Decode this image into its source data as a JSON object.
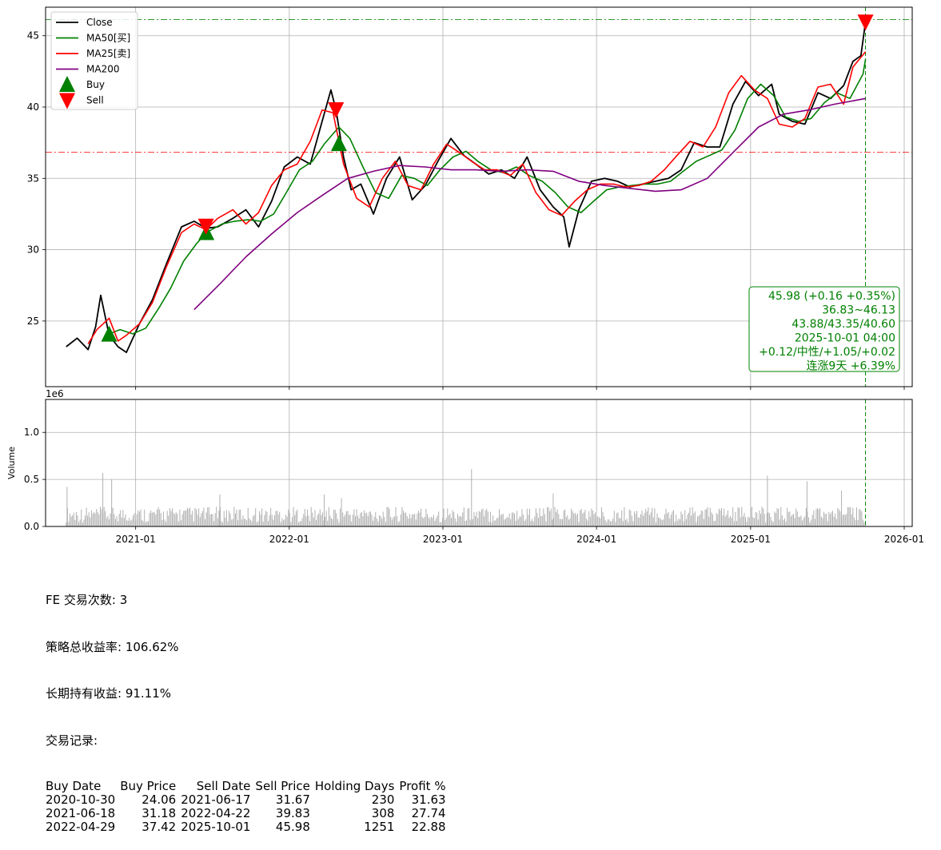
{
  "chart_data": [
    {
      "type": "line",
      "title": "",
      "xlabel": "",
      "ylabel": "",
      "ylim": [
        20.4,
        47.0
      ],
      "x_range": [
        "2020-06-01",
        "2026-01-20"
      ],
      "grid": true,
      "legend_placement": "top-left",
      "x_ticks": [
        "2021-01",
        "2022-01",
        "2023-01",
        "2024-01",
        "2025-01",
        "2026-01"
      ],
      "y_ticks": [
        25,
        30,
        35,
        40,
        45
      ],
      "series": [
        {
          "name": "Close",
          "color": "#000000",
          "x": [
            "2020-07-20",
            "2020-08-15",
            "2020-09-10",
            "2020-09-28",
            "2020-10-10",
            "2020-10-30",
            "2020-11-20",
            "2020-12-10",
            "2021-01-10",
            "2021-02-10",
            "2021-03-15",
            "2021-04-20",
            "2021-05-20",
            "2021-06-17",
            "2021-07-15",
            "2021-08-20",
            "2021-09-20",
            "2021-10-20",
            "2021-11-20",
            "2021-12-20",
            "2022-01-20",
            "2022-02-20",
            "2022-03-20",
            "2022-04-10",
            "2022-04-22",
            "2022-05-10",
            "2022-05-28",
            "2022-06-20",
            "2022-07-20",
            "2022-08-20",
            "2022-09-20",
            "2022-10-20",
            "2022-11-20",
            "2022-12-20",
            "2023-01-20",
            "2023-02-20",
            "2023-03-20",
            "2023-04-20",
            "2023-05-20",
            "2023-06-20",
            "2023-07-20",
            "2023-08-20",
            "2023-09-20",
            "2023-10-15",
            "2023-10-28",
            "2023-11-20",
            "2023-12-20",
            "2024-01-20",
            "2024-02-20",
            "2024-03-20",
            "2024-04-20",
            "2024-05-20",
            "2024-06-20",
            "2024-07-20",
            "2024-08-20",
            "2024-09-20",
            "2024-10-20",
            "2024-11-20",
            "2024-12-20",
            "2025-01-20",
            "2025-02-20",
            "2025-03-10",
            "2025-04-10",
            "2025-05-10",
            "2025-06-10",
            "2025-07-10",
            "2025-08-10",
            "2025-09-01",
            "2025-09-20",
            "2025-10-01"
          ],
          "values": [
            23.2,
            23.8,
            23.0,
            24.6,
            26.8,
            24.0,
            23.2,
            22.8,
            24.8,
            26.5,
            29.0,
            31.6,
            32.0,
            31.5,
            31.6,
            32.2,
            32.8,
            31.6,
            33.4,
            35.8,
            36.5,
            36.0,
            39.0,
            41.2,
            39.8,
            36.5,
            34.2,
            34.6,
            32.5,
            35.0,
            36.5,
            33.5,
            34.5,
            36.2,
            37.8,
            36.6,
            36.0,
            35.3,
            35.6,
            35.0,
            36.5,
            34.2,
            33.0,
            32.3,
            30.2,
            32.8,
            34.8,
            35.0,
            34.8,
            34.4,
            34.6,
            34.8,
            35.0,
            35.6,
            37.5,
            37.2,
            37.2,
            40.2,
            41.8,
            40.8,
            41.6,
            39.5,
            39.0,
            38.8,
            41.0,
            40.6,
            41.5,
            43.2,
            43.6,
            45.98
          ]
        },
        {
          "name": "MA50[买]",
          "color": "#008000",
          "x": [
            "2020-10-30",
            "2020-11-25",
            "2020-12-25",
            "2021-01-25",
            "2021-02-25",
            "2021-03-25",
            "2021-04-25",
            "2021-05-25",
            "2021-06-18",
            "2021-07-25",
            "2021-08-25",
            "2021-09-25",
            "2021-10-25",
            "2021-11-25",
            "2021-12-25",
            "2022-01-25",
            "2022-02-25",
            "2022-03-25",
            "2022-04-29",
            "2022-05-25",
            "2022-06-25",
            "2022-07-25",
            "2022-08-25",
            "2022-09-25",
            "2022-10-25",
            "2022-11-25",
            "2022-12-25",
            "2023-01-25",
            "2023-02-25",
            "2023-03-25",
            "2023-04-25",
            "2023-05-25",
            "2023-06-25",
            "2023-07-25",
            "2023-08-25",
            "2023-09-25",
            "2023-10-25",
            "2023-11-25",
            "2023-12-25",
            "2024-01-25",
            "2024-02-25",
            "2024-03-25",
            "2024-04-25",
            "2024-05-25",
            "2024-06-25",
            "2024-07-25",
            "2024-08-25",
            "2024-09-25",
            "2024-10-25",
            "2024-11-25",
            "2024-12-25",
            "2025-01-25",
            "2025-02-25",
            "2025-03-25",
            "2025-04-25",
            "2025-05-25",
            "2025-06-25",
            "2025-07-25",
            "2025-08-25",
            "2025-09-25",
            "2025-10-01"
          ],
          "values": [
            24.1,
            24.4,
            24.1,
            24.5,
            25.9,
            27.3,
            29.2,
            30.4,
            31.2,
            31.8,
            32.0,
            32.1,
            32.0,
            32.5,
            34.0,
            35.6,
            36.2,
            37.4,
            38.6,
            37.8,
            35.8,
            34.0,
            33.6,
            35.2,
            35.0,
            34.5,
            35.6,
            36.5,
            36.9,
            36.2,
            35.6,
            35.4,
            35.8,
            35.2,
            34.8,
            34.0,
            33.0,
            32.6,
            33.4,
            34.2,
            34.4,
            34.5,
            34.6,
            34.6,
            34.8,
            35.5,
            36.2,
            36.6,
            37.0,
            38.4,
            40.6,
            41.6,
            40.8,
            39.3,
            39.0,
            39.2,
            40.3,
            41.0,
            40.6,
            42.3,
            43.35
          ]
        },
        {
          "name": "MA25[卖]",
          "color": "#ff0000",
          "x": [
            "2020-09-10",
            "2020-10-01",
            "2020-10-30",
            "2020-11-20",
            "2020-12-10",
            "2021-01-10",
            "2021-02-10",
            "2021-03-15",
            "2021-04-20",
            "2021-05-20",
            "2021-06-17",
            "2021-07-15",
            "2021-08-20",
            "2021-09-20",
            "2021-10-20",
            "2021-11-20",
            "2021-12-20",
            "2022-01-20",
            "2022-02-20",
            "2022-03-20",
            "2022-04-15",
            "2022-05-10",
            "2022-06-10",
            "2022-07-10",
            "2022-08-10",
            "2022-09-10",
            "2022-10-10",
            "2022-11-10",
            "2022-12-10",
            "2023-01-10",
            "2023-02-10",
            "2023-03-10",
            "2023-04-10",
            "2023-05-10",
            "2023-06-10",
            "2023-07-10",
            "2023-08-10",
            "2023-09-10",
            "2023-10-10",
            "2023-11-10",
            "2023-12-10",
            "2024-01-10",
            "2024-02-10",
            "2024-03-10",
            "2024-04-10",
            "2024-05-10",
            "2024-06-10",
            "2024-07-10",
            "2024-08-10",
            "2024-09-10",
            "2024-10-10",
            "2024-11-10",
            "2024-12-10",
            "2025-01-10",
            "2025-02-10",
            "2025-03-10",
            "2025-04-10",
            "2025-05-10",
            "2025-06-10",
            "2025-07-10",
            "2025-08-10",
            "2025-09-01",
            "2025-10-01"
          ],
          "values": [
            23.4,
            24.4,
            25.2,
            23.6,
            24.0,
            24.8,
            26.3,
            28.8,
            31.2,
            31.8,
            31.4,
            32.2,
            32.8,
            31.8,
            32.6,
            34.5,
            35.6,
            36.0,
            37.6,
            39.8,
            39.6,
            36.0,
            33.6,
            33.0,
            35.0,
            36.2,
            34.5,
            34.2,
            36.0,
            37.4,
            36.8,
            36.2,
            35.6,
            35.6,
            35.2,
            36.0,
            34.0,
            32.8,
            32.4,
            33.4,
            34.2,
            34.6,
            34.6,
            34.4,
            34.5,
            34.8,
            35.6,
            36.6,
            37.6,
            37.2,
            38.6,
            41.0,
            42.2,
            41.2,
            40.6,
            38.8,
            38.6,
            39.2,
            41.4,
            41.6,
            40.2,
            42.8,
            43.88
          ]
        },
        {
          "name": "MA200",
          "color": "#800080",
          "x": [
            "2021-05-20",
            "2021-07-20",
            "2021-09-20",
            "2021-11-20",
            "2022-01-20",
            "2022-03-20",
            "2022-05-20",
            "2022-07-20",
            "2022-09-20",
            "2022-11-20",
            "2023-01-20",
            "2023-03-20",
            "2023-05-20",
            "2023-07-20",
            "2023-09-20",
            "2023-11-20",
            "2024-01-20",
            "2024-03-20",
            "2024-05-20",
            "2024-07-20",
            "2024-09-20",
            "2024-11-20",
            "2025-01-20",
            "2025-03-20",
            "2025-05-20",
            "2025-07-20",
            "2025-10-01"
          ],
          "values": [
            25.8,
            27.6,
            29.5,
            31.1,
            32.6,
            33.8,
            35.0,
            35.5,
            35.9,
            35.8,
            35.6,
            35.6,
            35.5,
            35.6,
            35.5,
            34.8,
            34.5,
            34.3,
            34.1,
            34.2,
            35.0,
            36.8,
            38.6,
            39.5,
            39.8,
            40.2,
            40.6
          ]
        }
      ],
      "hlines": [
        46.13,
        36.83
      ],
      "vline_date": "2025-10-01",
      "buy_markers": [
        {
          "date": "2020-10-30",
          "price": 24.06
        },
        {
          "date": "2021-06-18",
          "price": 31.18
        },
        {
          "date": "2022-04-29",
          "price": 37.42
        }
      ],
      "sell_markers": [
        {
          "date": "2021-06-17",
          "price": 31.67
        },
        {
          "date": "2022-04-22",
          "price": 39.83
        },
        {
          "date": "2025-10-01",
          "price": 45.98
        }
      ],
      "legend": [
        "Close",
        "MA50[买]",
        "MA25[卖]",
        "MA200",
        "Buy",
        "Sell"
      ],
      "annotation_lines": [
        "45.98 (+0.16 +0.35%)",
        "36.83~46.13",
        "43.88/43.35/40.60",
        "2025-10-01 04:00",
        "+0.12/中性/+1.05/+0.02",
        "连涨9天 +6.39%"
      ]
    },
    {
      "type": "bar",
      "ylabel": "Volume",
      "offset_label": "1e6",
      "ylim": [
        0,
        1.35
      ],
      "y_ticks": [
        "0.0",
        "0.5",
        "1.0"
      ],
      "x_ticks": [
        "2021-01",
        "2022-01",
        "2023-01",
        "2024-01",
        "2025-01",
        "2026-01"
      ],
      "grid": true,
      "color": "#b0b0b0",
      "volume_range": [
        "2020-07-20",
        "2025-10-01"
      ],
      "typical_volume_millions": 0.12,
      "peak_volumes": [
        {
          "date": "2020-07-22",
          "value": 0.42
        },
        {
          "date": "2020-10-15",
          "value": 0.57
        },
        {
          "date": "2020-11-05",
          "value": 0.5
        },
        {
          "date": "2021-07-20",
          "value": 0.34
        },
        {
          "date": "2022-03-25",
          "value": 0.34
        },
        {
          "date": "2022-05-05",
          "value": 0.3
        },
        {
          "date": "2023-03-10",
          "value": 0.61
        },
        {
          "date": "2023-09-20",
          "value": 0.35
        },
        {
          "date": "2025-02-10",
          "value": 0.54
        },
        {
          "date": "2025-05-15",
          "value": 0.48
        },
        {
          "date": "2025-08-05",
          "value": 0.38
        }
      ]
    }
  ],
  "summary": {
    "line1": "FE 交易次数: 3",
    "line2": "策略总收益率: 106.62%",
    "line3": "长期持有收益: 91.11%",
    "line4": "交易记录:",
    "table_headers": [
      "Buy Date",
      "Buy Price",
      "Sell Date",
      "Sell Price",
      "Holding Days",
      "Profit %"
    ],
    "rows": [
      [
        "2020-10-30",
        "24.06",
        "2021-06-17",
        "31.67",
        "230",
        "31.63"
      ],
      [
        "2021-06-18",
        "31.18",
        "2022-04-22",
        "39.83",
        "308",
        "27.74"
      ],
      [
        "2022-04-29",
        "37.42",
        "2025-10-01",
        "45.98",
        "1251",
        "22.88"
      ]
    ]
  }
}
